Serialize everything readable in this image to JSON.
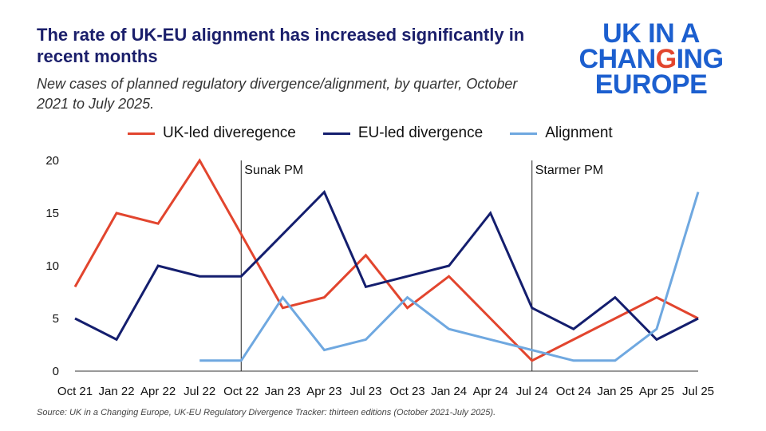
{
  "title": "The rate of UK-EU alignment has increased significantly in recent months",
  "subtitle": "New cases of planned regulatory divergence/alignment, by quarter, October 2021 to July 2025.",
  "logo": {
    "line1": "UK IN A",
    "line2a": "CHAN",
    "line2b": "G",
    "line2c": "ING",
    "line3": "EUROPE",
    "blue": "#1c5fcf",
    "red": "#e2452e"
  },
  "source": "Source: UK in a Changing Europe, UK-EU Regulatory Divergence Tracker: thirteen editions (October 2021-July 2025).",
  "chart_data": {
    "type": "line",
    "title": "The rate of UK-EU alignment has increased significantly in recent months",
    "subtitle": "New cases of planned regulatory divergence/alignment, by quarter, October 2021 to July 2025.",
    "xlabel": "",
    "ylabel": "",
    "ylim": [
      0,
      20
    ],
    "yticks": [
      0,
      5,
      10,
      15,
      20
    ],
    "grid": false,
    "legend_position": "top",
    "categories": [
      "Oct 21",
      "Jan 22",
      "Apr 22",
      "Jul 22",
      "Oct 22",
      "Jan 23",
      "Apr 23",
      "Jul 23",
      "Oct 23",
      "Jan 24",
      "Apr 24",
      "Jul 24",
      "Oct 24",
      "Jan 25",
      "Apr 25",
      "Jul 25"
    ],
    "series": [
      {
        "name": "UK-led diveregence",
        "color": "#e2452e",
        "values": [
          8,
          15,
          14,
          20,
          13,
          6,
          7,
          11,
          6,
          9,
          5,
          1,
          3,
          5,
          7,
          5
        ]
      },
      {
        "name": "EU-led divergence",
        "color": "#141e6e",
        "values": [
          5,
          3,
          10,
          9,
          9,
          13,
          17,
          8,
          9,
          10,
          15,
          6,
          4,
          7,
          3,
          5
        ]
      },
      {
        "name": "Alignment",
        "color": "#6fa8e0",
        "values": [
          null,
          null,
          null,
          1,
          1,
          7,
          2,
          3,
          7,
          4,
          3,
          2,
          1,
          1,
          4,
          17
        ]
      }
    ],
    "annotations": [
      {
        "label": "Sunak PM",
        "category": "Oct 22"
      },
      {
        "label": "Starmer PM",
        "category": "Jul 24"
      }
    ]
  }
}
